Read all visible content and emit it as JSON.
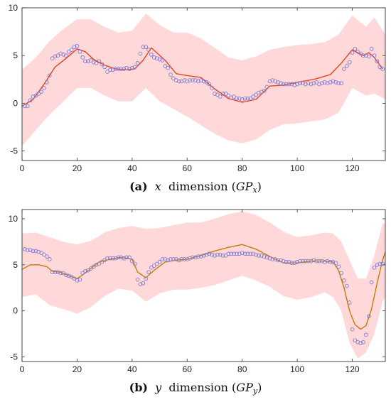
{
  "chart_data": [
    {
      "type": "line",
      "xlim": [
        0,
        132
      ],
      "ylim": [
        -6,
        10
      ],
      "xticks": [
        0,
        20,
        40,
        60,
        80,
        100,
        120
      ],
      "yticks": [
        -5,
        0,
        5,
        10
      ],
      "grid": false,
      "caption": {
        "label": "(a)",
        "var": "x",
        "word": "dimension",
        "symbol": "GP",
        "sub": "x"
      },
      "colors": {
        "band": "#ffd9d9",
        "line": "#e8421c",
        "markers": "#7b7bd6"
      },
      "band": {
        "x": [
          0,
          5,
          10,
          15,
          20,
          25,
          30,
          35,
          40,
          45,
          50,
          55,
          60,
          65,
          70,
          75,
          80,
          85,
          90,
          95,
          100,
          105,
          110,
          115,
          120,
          125,
          128,
          132
        ],
        "upper": [
          3.5,
          4.8,
          6.5,
          7.8,
          8.8,
          8.8,
          8.0,
          7.4,
          7.6,
          9.4,
          8.2,
          7.4,
          7.4,
          6.8,
          5.8,
          4.8,
          4.5,
          4.9,
          5.6,
          5.9,
          6.1,
          6.2,
          6.4,
          7.2,
          9.2,
          8.0,
          9.0,
          7.2
        ],
        "lower": [
          -4.5,
          -2.8,
          -1.2,
          0.2,
          1.6,
          1.6,
          0.8,
          0.2,
          0.2,
          1.6,
          0.2,
          -0.6,
          -1.4,
          -2.3,
          -3.2,
          -3.9,
          -4.2,
          -3.8,
          -2.8,
          -2.2,
          -2.1,
          -1.9,
          -1.7,
          -1.0,
          1.6,
          0.8,
          1.0,
          0.4
        ]
      },
      "mean": {
        "x": [
          0,
          4,
          8,
          12,
          16,
          20,
          23,
          26,
          30,
          34,
          38,
          41,
          44,
          47,
          52,
          56,
          60,
          65,
          70,
          75,
          80,
          85,
          90,
          95,
          100,
          106,
          112,
          116,
          120,
          124,
          126,
          128,
          131
        ],
        "y": [
          -0.3,
          0.4,
          2.0,
          3.8,
          4.7,
          5.7,
          5.4,
          4.6,
          4.0,
          3.6,
          3.5,
          3.6,
          4.5,
          5.8,
          4.5,
          3.1,
          2.9,
          2.7,
          1.5,
          0.5,
          0.1,
          0.4,
          1.8,
          1.9,
          2.2,
          2.5,
          3.0,
          4.2,
          5.6,
          5.0,
          5.3,
          4.8,
          3.6
        ]
      },
      "observations": {
        "x": [
          1,
          2,
          3,
          4,
          5,
          6,
          7,
          8,
          9,
          10,
          11,
          12,
          13,
          14,
          15,
          16,
          17,
          18,
          19,
          20,
          21,
          22,
          23,
          24,
          25,
          26,
          27,
          28,
          29,
          30,
          31,
          32,
          33,
          34,
          35,
          36,
          37,
          38,
          39,
          40,
          41,
          42,
          43,
          44,
          45,
          46,
          47,
          48,
          49,
          50,
          51,
          52,
          53,
          54,
          55,
          56,
          57,
          58,
          59,
          60,
          61,
          62,
          63,
          64,
          65,
          66,
          67,
          68,
          69,
          70,
          71,
          72,
          73,
          74,
          75,
          76,
          77,
          78,
          79,
          80,
          81,
          82,
          83,
          84,
          85,
          86,
          87,
          88,
          89,
          90,
          91,
          92,
          93,
          94,
          95,
          96,
          97,
          98,
          99,
          100,
          101,
          102,
          103,
          104,
          105,
          106,
          107,
          108,
          109,
          110,
          111,
          112,
          113,
          114,
          115,
          116,
          117,
          118,
          119,
          120,
          121,
          122,
          123,
          124,
          125,
          126,
          127,
          128,
          129,
          130,
          131
        ],
        "y": [
          -0.3,
          -0.3,
          0.3,
          0.7,
          0.8,
          1.0,
          1.2,
          1.6,
          2.2,
          2.9,
          4.7,
          4.9,
          5.0,
          5.2,
          5.1,
          5.0,
          5.4,
          5.6,
          5.9,
          6.0,
          5.4,
          4.8,
          4.4,
          4.4,
          4.5,
          4.3,
          4.2,
          4.4,
          4.1,
          3.8,
          3.3,
          3.5,
          3.5,
          3.6,
          3.6,
          3.6,
          3.6,
          3.7,
          3.6,
          3.7,
          3.8,
          4.2,
          5.2,
          5.9,
          5.9,
          5.6,
          5.1,
          4.8,
          4.7,
          4.6,
          4.5,
          3.9,
          3.7,
          3.0,
          2.6,
          2.4,
          2.3,
          2.3,
          2.4,
          2.3,
          2.4,
          2.4,
          2.4,
          2.3,
          2.4,
          2.3,
          2.2,
          2.0,
          1.6,
          1.0,
          0.9,
          0.7,
          1.0,
          1.0,
          0.8,
          0.6,
          0.7,
          0.5,
          0.5,
          0.4,
          0.5,
          0.5,
          0.5,
          0.7,
          0.9,
          1.1,
          1.2,
          1.3,
          1.7,
          2.3,
          2.4,
          2.3,
          2.2,
          2.1,
          2.0,
          2.0,
          2.0,
          2.0,
          1.9,
          2.0,
          2.1,
          2.1,
          2.0,
          2.1,
          2.0,
          2.1,
          2.2,
          2.0,
          2.1,
          2.2,
          2.1,
          2.2,
          2.3,
          2.2,
          2.1,
          2.1,
          3.6,
          3.9,
          4.3,
          5.3,
          5.7,
          5.4,
          5.2,
          5.0,
          5.0,
          4.9,
          5.7,
          5.0,
          4.4,
          3.8,
          3.6
        ]
      }
    },
    {
      "type": "line",
      "xlim": [
        0,
        132
      ],
      "ylim": [
        -5.5,
        11
      ],
      "xticks": [
        0,
        20,
        40,
        60,
        80,
        100,
        120
      ],
      "yticks": [
        -5,
        0,
        5,
        10
      ],
      "grid": false,
      "caption": {
        "label": "(b)",
        "var": "y",
        "word": "dimension",
        "symbol": "GP",
        "sub": "y"
      },
      "colors": {
        "band": "#ffd9d9",
        "line": "#c77a0a",
        "markers": "#7b7bd6"
      },
      "band": {
        "x": [
          0,
          5,
          10,
          15,
          20,
          25,
          30,
          35,
          40,
          45,
          50,
          55,
          60,
          65,
          70,
          75,
          80,
          85,
          90,
          95,
          100,
          105,
          110,
          113,
          116,
          119,
          122,
          125,
          128,
          131,
          132
        ],
        "upper": [
          8.4,
          8.5,
          8.0,
          7.5,
          7.2,
          7.6,
          8.5,
          9.0,
          9.2,
          8.9,
          9.0,
          9.3,
          9.6,
          9.6,
          10.0,
          10.5,
          10.8,
          10.4,
          9.6,
          8.6,
          8.0,
          8.2,
          8.5,
          8.4,
          7.5,
          5.5,
          3.5,
          3.5,
          6.0,
          9.5,
          9.5
        ],
        "lower": [
          1.5,
          1.8,
          0.6,
          0.2,
          -0.3,
          0.4,
          1.6,
          2.4,
          2.2,
          1.0,
          1.9,
          2.3,
          2.3,
          2.5,
          2.8,
          3.3,
          3.8,
          3.3,
          2.6,
          1.6,
          1.2,
          1.5,
          2.0,
          1.5,
          0.0,
          -3.5,
          -5.2,
          -4.5,
          -2.5,
          1.0,
          1.5
        ]
      },
      "mean": {
        "x": [
          0,
          3,
          6,
          9,
          11,
          14,
          17,
          20,
          22,
          25,
          28,
          32,
          36,
          40,
          42,
          45,
          48,
          52,
          56,
          60,
          65,
          70,
          75,
          80,
          85,
          90,
          95,
          100,
          105,
          110,
          113,
          115,
          117,
          119,
          121,
          123,
          125,
          127,
          129,
          131,
          132
        ],
        "y": [
          4.5,
          5.0,
          5.0,
          4.8,
          4.3,
          4.2,
          3.8,
          3.5,
          3.9,
          4.6,
          5.3,
          5.6,
          5.8,
          5.6,
          4.2,
          3.6,
          4.4,
          5.3,
          5.5,
          5.6,
          6.0,
          6.5,
          6.9,
          7.2,
          6.7,
          5.9,
          5.2,
          5.2,
          5.4,
          5.4,
          5.3,
          4.4,
          2.5,
          0.0,
          -1.5,
          -2.0,
          -1.6,
          0.2,
          3.0,
          5.5,
          6.4
        ]
      },
      "observations": {
        "x": [
          1,
          2,
          3,
          4,
          5,
          6,
          7,
          8,
          9,
          10,
          11,
          12,
          13,
          14,
          15,
          16,
          17,
          18,
          19,
          20,
          21,
          22,
          23,
          24,
          25,
          26,
          27,
          28,
          29,
          30,
          31,
          32,
          33,
          34,
          35,
          36,
          37,
          38,
          39,
          40,
          41,
          42,
          43,
          44,
          45,
          46,
          47,
          48,
          49,
          50,
          51,
          52,
          53,
          54,
          55,
          56,
          57,
          58,
          59,
          60,
          61,
          62,
          63,
          64,
          65,
          66,
          67,
          68,
          69,
          70,
          71,
          72,
          73,
          74,
          75,
          76,
          77,
          78,
          79,
          80,
          81,
          82,
          83,
          84,
          85,
          86,
          87,
          88,
          89,
          90,
          91,
          92,
          93,
          94,
          95,
          96,
          97,
          98,
          99,
          100,
          101,
          102,
          103,
          104,
          105,
          106,
          107,
          108,
          109,
          110,
          111,
          112,
          113,
          114,
          115,
          116,
          117,
          118,
          119,
          120,
          121,
          122,
          123,
          124,
          125,
          126,
          127,
          128,
          129,
          130,
          131
        ],
        "y": [
          6.7,
          6.6,
          6.6,
          6.5,
          6.5,
          6.4,
          6.3,
          6.1,
          5.9,
          5.6,
          4.2,
          4.2,
          4.2,
          4.1,
          4.1,
          3.9,
          3.8,
          3.7,
          3.5,
          3.3,
          3.4,
          4.1,
          4.3,
          4.4,
          4.6,
          4.8,
          5.0,
          5.1,
          5.3,
          5.5,
          5.7,
          5.7,
          5.7,
          5.7,
          5.8,
          5.8,
          5.7,
          5.8,
          5.8,
          5.4,
          5.1,
          3.4,
          2.9,
          3.0,
          3.5,
          4.2,
          4.7,
          4.9,
          5.1,
          5.3,
          5.6,
          5.6,
          5.5,
          5.6,
          5.6,
          5.6,
          5.5,
          5.6,
          5.6,
          5.6,
          5.7,
          5.8,
          5.8,
          5.9,
          5.9,
          6.0,
          6.1,
          6.2,
          6.1,
          6.0,
          6.1,
          6.1,
          6.0,
          6.0,
          6.2,
          6.2,
          6.2,
          6.2,
          6.2,
          6.3,
          6.2,
          6.2,
          6.2,
          6.2,
          6.1,
          6.0,
          6.0,
          5.9,
          5.8,
          5.7,
          5.6,
          5.6,
          5.5,
          5.5,
          5.4,
          5.3,
          5.3,
          5.2,
          5.2,
          5.3,
          5.4,
          5.4,
          5.4,
          5.4,
          5.4,
          5.5,
          5.4,
          5.4,
          5.4,
          5.3,
          5.4,
          5.3,
          5.3,
          5.2,
          4.8,
          4.1,
          3.3,
          2.7,
          0.9,
          -2.0,
          -3.2,
          -3.4,
          -3.5,
          -3.4,
          -2.6,
          -0.6,
          3.1,
          4.7,
          5.0,
          5.1,
          5.1
        ]
      }
    }
  ]
}
